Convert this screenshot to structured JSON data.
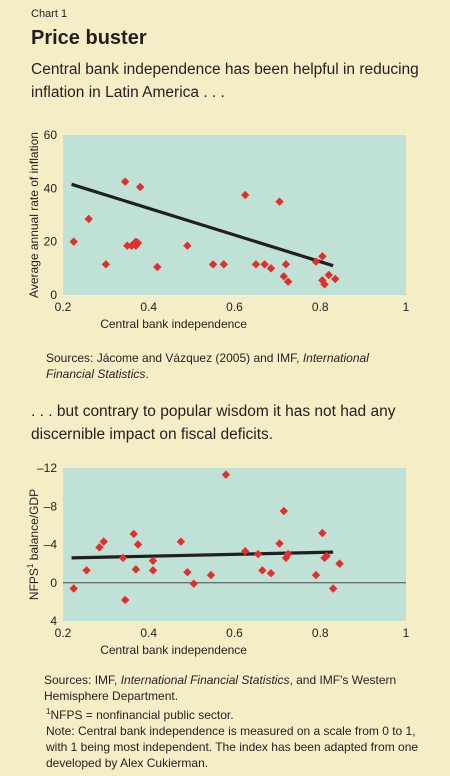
{
  "header": {
    "chart_number": "Chart 1",
    "title": "Price buster"
  },
  "colors": {
    "page_background": "#f5edc6",
    "plot_background": "#bfe1d6",
    "marker": "#e0302e",
    "trend_line": "#231f20"
  },
  "chart_data": [
    {
      "type": "scatter",
      "subtitle": "Central bank independence has been helpful in reducing inflation in Latin America . . .",
      "xlabel": "Central bank independence",
      "ylabel": "Average annual rate of inflation",
      "xlim": [
        0.2,
        1
      ],
      "ylim": [
        0,
        60
      ],
      "x_ticks": [
        "0.2",
        "0.4",
        "0.6",
        "0.8",
        "1"
      ],
      "y_ticks": [
        "0",
        "20",
        "40",
        "60"
      ],
      "grid": false,
      "trend_line": {
        "x": [
          0.22,
          0.83
        ],
        "y": [
          41.5,
          11.0
        ]
      },
      "points": [
        {
          "x": 0.225,
          "y": 20
        },
        {
          "x": 0.26,
          "y": 28.5
        },
        {
          "x": 0.3,
          "y": 11.5
        },
        {
          "x": 0.345,
          "y": 42.5
        },
        {
          "x": 0.35,
          "y": 18.5
        },
        {
          "x": 0.36,
          "y": 18.5
        },
        {
          "x": 0.37,
          "y": 18.5
        },
        {
          "x": 0.37,
          "y": 20
        },
        {
          "x": 0.375,
          "y": 19.5
        },
        {
          "x": 0.38,
          "y": 40.5
        },
        {
          "x": 0.42,
          "y": 10.5
        },
        {
          "x": 0.49,
          "y": 18.5
        },
        {
          "x": 0.55,
          "y": 11.5
        },
        {
          "x": 0.575,
          "y": 11.5
        },
        {
          "x": 0.625,
          "y": 37.5
        },
        {
          "x": 0.65,
          "y": 11.5
        },
        {
          "x": 0.67,
          "y": 11.5
        },
        {
          "x": 0.685,
          "y": 10
        },
        {
          "x": 0.705,
          "y": 35
        },
        {
          "x": 0.715,
          "y": 7
        },
        {
          "x": 0.72,
          "y": 11.5
        },
        {
          "x": 0.725,
          "y": 5
        },
        {
          "x": 0.79,
          "y": 12.5
        },
        {
          "x": 0.805,
          "y": 14.5
        },
        {
          "x": 0.805,
          "y": 5.5
        },
        {
          "x": 0.81,
          "y": 4
        },
        {
          "x": 0.82,
          "y": 7.5
        },
        {
          "x": 0.835,
          "y": 6
        }
      ]
    },
    {
      "type": "scatter",
      "subtitle": ". . . but contrary to popular wisdom it has not had any discernible impact on fiscal deficits.",
      "xlabel": "Central bank independence",
      "ylabel": "NFPS balance/GDP",
      "ylabel_footnote": "1",
      "xlim": [
        0.2,
        1
      ],
      "ylim": [
        4,
        -12
      ],
      "x_ticks": [
        "0.2",
        "0.4",
        "0.6",
        "0.8",
        "1"
      ],
      "y_ticks": [
        "4",
        "0",
        "–4",
        "–8",
        "–12"
      ],
      "zero_line": true,
      "grid": false,
      "trend_line": {
        "x": [
          0.22,
          0.83
        ],
        "y": [
          -2.6,
          -3.2
        ]
      },
      "points": [
        {
          "x": 0.225,
          "y": 0.6
        },
        {
          "x": 0.255,
          "y": -1.3
        },
        {
          "x": 0.285,
          "y": -3.7
        },
        {
          "x": 0.295,
          "y": -4.3
        },
        {
          "x": 0.34,
          "y": -2.6
        },
        {
          "x": 0.345,
          "y": 1.8
        },
        {
          "x": 0.365,
          "y": -5.1
        },
        {
          "x": 0.37,
          "y": -1.4
        },
        {
          "x": 0.375,
          "y": -4.0
        },
        {
          "x": 0.41,
          "y": -2.3
        },
        {
          "x": 0.41,
          "y": -1.3
        },
        {
          "x": 0.475,
          "y": -4.3
        },
        {
          "x": 0.49,
          "y": -1.1
        },
        {
          "x": 0.505,
          "y": 0.1
        },
        {
          "x": 0.545,
          "y": -0.8
        },
        {
          "x": 0.58,
          "y": -11.3
        },
        {
          "x": 0.625,
          "y": -3.3
        },
        {
          "x": 0.655,
          "y": -3.0
        },
        {
          "x": 0.665,
          "y": -1.3
        },
        {
          "x": 0.685,
          "y": -1.0
        },
        {
          "x": 0.705,
          "y": -4.1
        },
        {
          "x": 0.715,
          "y": -7.5
        },
        {
          "x": 0.72,
          "y": -2.6
        },
        {
          "x": 0.725,
          "y": -3.0
        },
        {
          "x": 0.79,
          "y": -0.8
        },
        {
          "x": 0.805,
          "y": -5.2
        },
        {
          "x": 0.81,
          "y": -2.6
        },
        {
          "x": 0.815,
          "y": -2.8
        },
        {
          "x": 0.83,
          "y": 0.6
        },
        {
          "x": 0.845,
          "y": -2.0
        }
      ]
    }
  ],
  "sources": {
    "chart1_prefix": "Sources: Jácome and Vázquez (2005) and IMF, ",
    "chart1_italic": "International Financial Statistics",
    "chart1_suffix": ".",
    "chart2_prefix": "Sources: IMF, ",
    "chart2_italic": "International Financial Statistics",
    "chart2_suffix": ", and IMF's Western Hemisphere Department.",
    "footnote_marker": "1",
    "footnote_text": "NFPS = nonfinancial public sector.",
    "note": "Note: Central bank independence is measured on a scale from 0 to 1, with 1 being most independent. The index has been adapted from one developed by Alex Cukierman."
  }
}
